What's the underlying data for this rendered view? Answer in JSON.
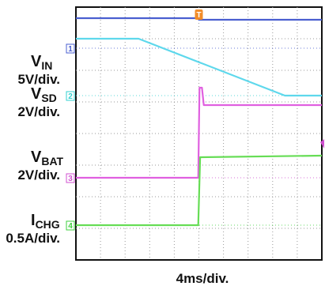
{
  "chart_data": {
    "type": "line",
    "title": "",
    "xlabel": "4ms/div.",
    "ylabel": "",
    "xlim": [
      0,
      40
    ],
    "ylim": [
      0,
      8
    ],
    "grid": true,
    "divisions": {
      "x": 10,
      "y": 8
    },
    "trigger_marker": {
      "label": "T",
      "x": 20.0,
      "color": "#f28c28"
    },
    "channels": [
      {
        "id": "1",
        "label_main": "V",
        "label_sub": "IN",
        "scale": "5V/div.",
        "zero_y": 6.7,
        "marker_color": "#4a5fd0"
      },
      {
        "id": "2",
        "label_main": "V",
        "label_sub": "SD",
        "scale": "2V/div.",
        "zero_y": 5.2,
        "marker_color": "#33d0d0"
      },
      {
        "id": "3",
        "label_main": "V",
        "label_sub": "BAT",
        "scale": "2V/div.",
        "zero_y": 2.6,
        "marker_color": "#d050d0"
      },
      {
        "id": "4",
        "label_main": "I",
        "label_sub": "CHG",
        "scale": "0.5A/div.",
        "zero_y": 1.1,
        "marker_color": "#3ecf3e"
      }
    ],
    "series": [
      {
        "color": "#4a5fd0",
        "x": [
          0,
          20.0,
          20.0,
          40
        ],
        "y": [
          7.65,
          7.65,
          7.6,
          7.6
        ]
      },
      {
        "color": "#5ed8ec",
        "x": [
          0,
          10.2,
          34.0,
          40
        ],
        "y": [
          7.0,
          7.0,
          5.2,
          5.2
        ]
      },
      {
        "color": "#e060e0",
        "x": [
          0,
          19.9,
          20.1,
          20.5,
          20.8,
          40
        ],
        "y": [
          2.6,
          2.6,
          5.45,
          5.45,
          4.9,
          4.9
        ]
      },
      {
        "color": "#66dd55",
        "x": [
          0,
          19.9,
          20.2,
          40
        ],
        "y": [
          1.1,
          1.1,
          3.25,
          3.3
        ]
      }
    ],
    "offscreen_marker_color": "#d050d0"
  }
}
